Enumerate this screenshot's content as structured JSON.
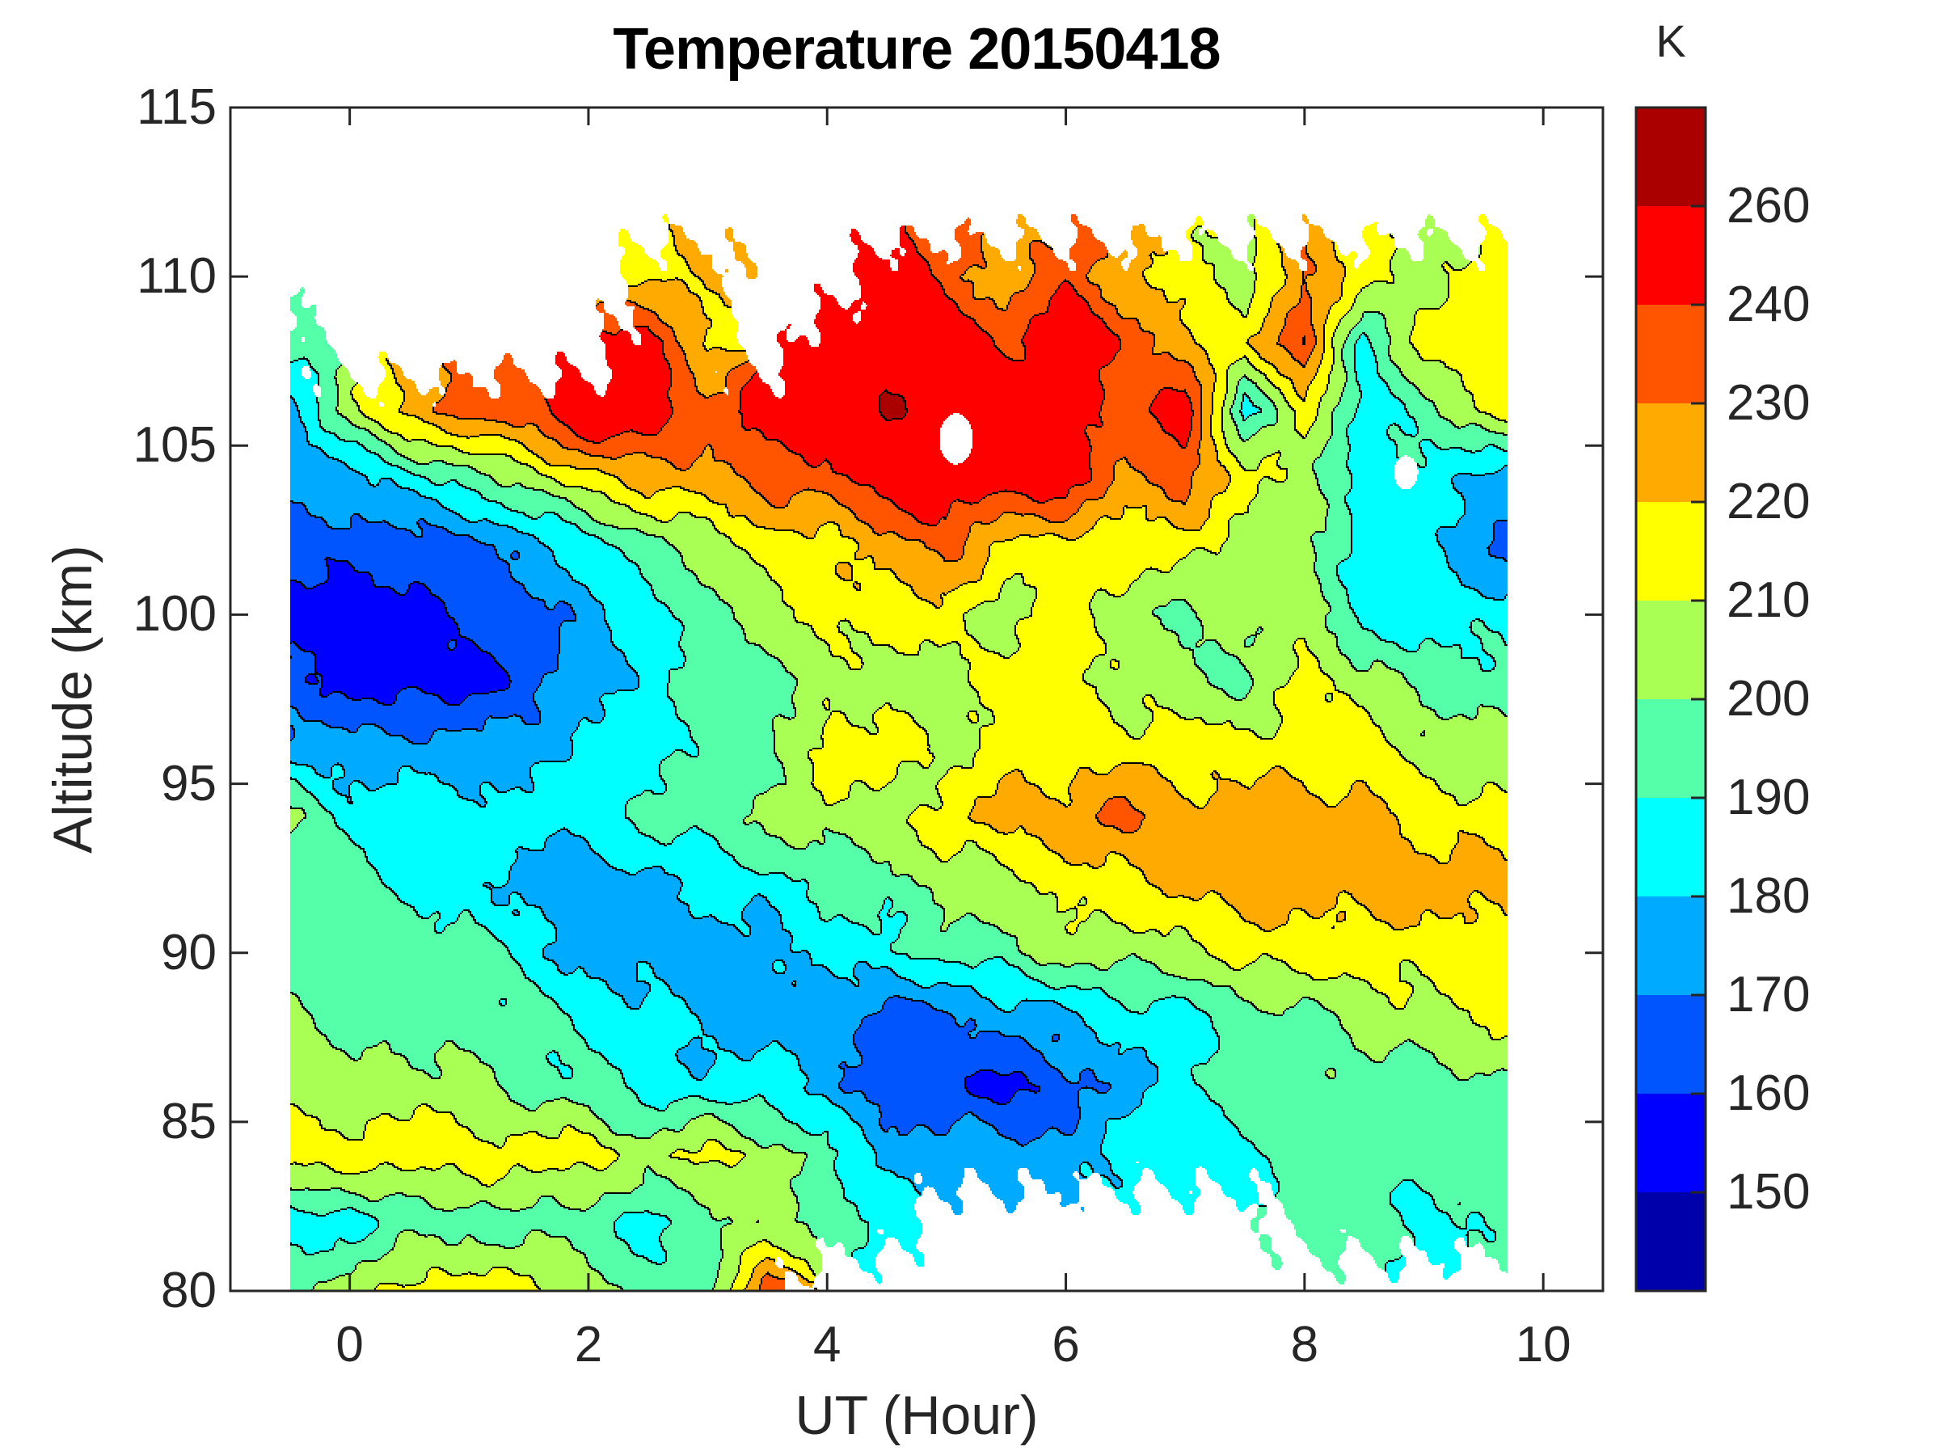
{
  "chart_data": {
    "type": "contour-filled",
    "title": "Temperature 20150418",
    "xlabel": "UT (Hour)",
    "ylabel": "Altitude (km)",
    "colorbar_label": "K",
    "xlim": [
      -1,
      10.5
    ],
    "ylim": [
      80,
      115
    ],
    "x_tick_values": [
      0,
      2,
      4,
      6,
      8,
      10
    ],
    "x_tick_labels": [
      "0",
      "2",
      "4",
      "6",
      "8",
      "10"
    ],
    "y_tick_values": [
      80,
      85,
      90,
      95,
      100,
      105,
      110,
      115
    ],
    "y_tick_labels": [
      "80",
      "85",
      "90",
      "95",
      "100",
      "105",
      "110",
      "115"
    ],
    "colorbar_tick_labels": [
      "260",
      "240",
      "230",
      "220",
      "210",
      "200",
      "190",
      "180",
      "170",
      "160",
      "150"
    ],
    "colorbar_tick_values": [
      260,
      240,
      230,
      220,
      210,
      200,
      190,
      180,
      170,
      160,
      150
    ],
    "levels": [
      150,
      160,
      170,
      180,
      190,
      200,
      210,
      220,
      230,
      240,
      260
    ],
    "band_colors": [
      "#0000AA",
      "#0000FF",
      "#0055FF",
      "#00AAFF",
      "#00FFFF",
      "#55FFAA",
      "#AAFF55",
      "#FFFF00",
      "#FFAA00",
      "#FF5500",
      "#FF0000",
      "#AA0000"
    ],
    "axis_color": "#262626",
    "contour_line_color": "#000000",
    "x": [
      -0.5,
      0,
      0.5,
      1,
      1.5,
      2,
      2.5,
      3,
      3.5,
      4,
      4.5,
      5,
      5.5,
      6,
      6.5,
      7,
      7.5,
      8,
      8.5,
      9,
      9.7
    ],
    "y": [
      80,
      82,
      84,
      86,
      88,
      90,
      92,
      94,
      96,
      98,
      100,
      102,
      104,
      106,
      108,
      110,
      112
    ],
    "grid": [
      [
        195,
        205,
        215,
        215,
        215,
        205,
        195,
        195,
        235,
        null,
        null,
        null,
        null,
        null,
        null,
        null,
        null,
        null,
        null,
        null,
        null
      ],
      [
        185,
        185,
        195,
        195,
        195,
        195,
        185,
        195,
        205,
        195,
        185,
        null,
        null,
        null,
        null,
        null,
        null,
        195,
        195,
        185,
        195
      ],
      [
        215,
        215,
        215,
        215,
        215,
        215,
        205,
        215,
        205,
        195,
        175,
        175,
        175,
        175,
        185,
        185,
        185,
        195,
        195,
        195,
        195
      ],
      [
        205,
        205,
        205,
        205,
        195,
        195,
        185,
        185,
        185,
        175,
        165,
        165,
        155,
        165,
        175,
        185,
        195,
        195,
        195,
        195,
        195
      ],
      [
        205,
        195,
        195,
        195,
        195,
        185,
        185,
        175,
        175,
        175,
        165,
        165,
        175,
        175,
        185,
        185,
        195,
        195,
        205,
        205,
        215
      ],
      [
        195,
        195,
        195,
        195,
        185,
        175,
        175,
        175,
        175,
        185,
        185,
        195,
        195,
        205,
        205,
        205,
        215,
        215,
        215,
        215,
        215
      ],
      [
        195,
        195,
        185,
        185,
        175,
        175,
        175,
        185,
        185,
        195,
        195,
        205,
        205,
        215,
        215,
        225,
        225,
        225,
        225,
        225,
        225
      ],
      [
        205,
        185,
        185,
        185,
        185,
        185,
        195,
        195,
        205,
        205,
        205,
        215,
        225,
        225,
        235,
        225,
        225,
        225,
        225,
        215,
        215
      ],
      [
        175,
        175,
        175,
        175,
        175,
        185,
        185,
        195,
        195,
        215,
        215,
        205,
        215,
        215,
        215,
        215,
        215,
        215,
        215,
        205,
        205
      ],
      [
        165,
        155,
        155,
        155,
        165,
        175,
        185,
        195,
        195,
        205,
        205,
        205,
        215,
        215,
        205,
        205,
        195,
        215,
        205,
        195,
        195
      ],
      [
        155,
        155,
        155,
        165,
        165,
        175,
        185,
        195,
        205,
        215,
        215,
        215,
        205,
        215,
        205,
        195,
        205,
        205,
        185,
        185,
        185
      ],
      [
        165,
        165,
        165,
        165,
        175,
        185,
        195,
        205,
        215,
        215,
        225,
        235,
        215,
        215,
        215,
        215,
        205,
        205,
        185,
        185,
        165
      ],
      [
        175,
        175,
        185,
        195,
        205,
        215,
        225,
        225,
        235,
        235,
        248,
        248,
        248,
        248,
        225,
        235,
        215,
        205,
        185,
        185,
        175
      ],
      [
        175,
        205,
        225,
        235,
        235,
        258,
        248,
        235,
        248,
        248,
        263,
        248,
        248,
        248,
        235,
        248,
        185,
        215,
        185,
        195,
        215
      ],
      [
        195,
        null,
        null,
        null,
        null,
        null,
        248,
        215,
        null,
        248,
        248,
        248,
        235,
        255,
        235,
        225,
        215,
        240,
        185,
        215,
        215
      ],
      [
        null,
        null,
        null,
        null,
        null,
        null,
        215,
        225,
        null,
        null,
        248,
        235,
        225,
        235,
        225,
        215,
        205,
        230,
        215,
        205,
        215
      ],
      [
        null,
        null,
        null,
        null,
        null,
        null,
        null,
        null,
        null,
        null,
        null,
        null,
        null,
        null,
        null,
        null,
        null,
        null,
        null,
        null,
        null
      ]
    ],
    "no_data_holes": [
      {
        "x": 5.08,
        "y": 105.2,
        "rx": 0.14,
        "ry": 0.75
      },
      {
        "x": 8.85,
        "y": 104.2,
        "rx": 0.1,
        "ry": 0.5
      }
    ]
  }
}
